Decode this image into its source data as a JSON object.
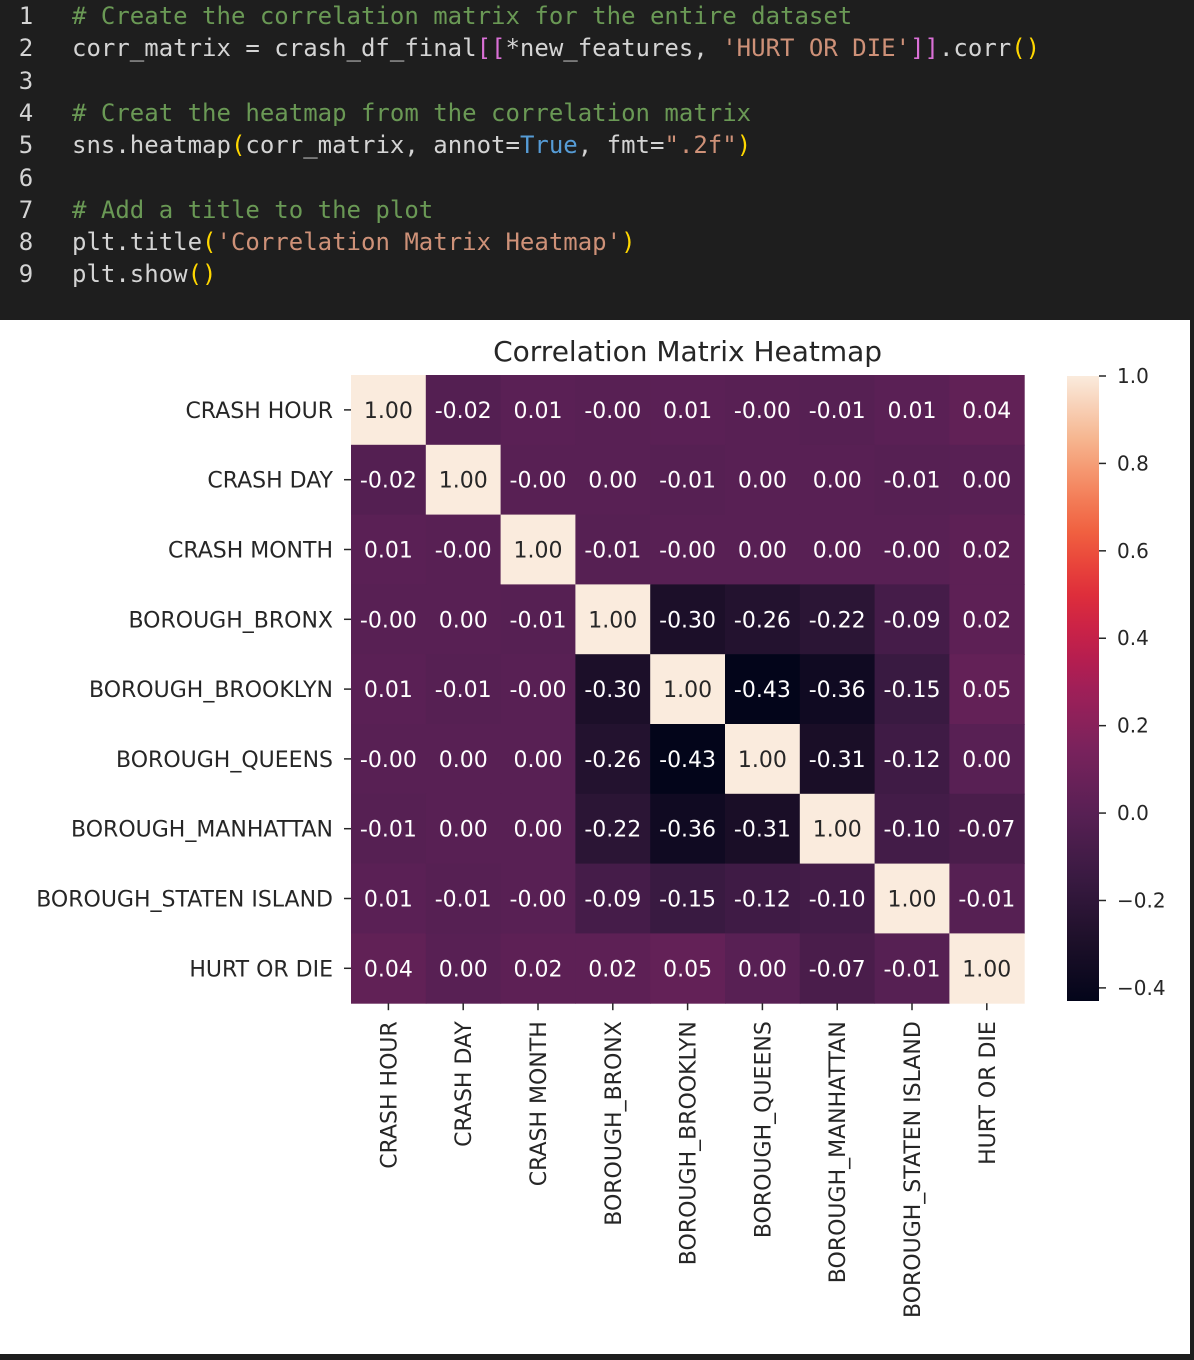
{
  "code_cell": {
    "lines": [
      {
        "num": "1",
        "tokens": [
          {
            "t": "# Create the correlation matrix for the entire dataset",
            "k": "comment"
          }
        ]
      },
      {
        "num": "2",
        "tokens": [
          {
            "t": "corr_matrix = crash_df_final",
            "k": "plain"
          },
          {
            "t": "[[",
            "k": "bracket"
          },
          {
            "t": "*new_features, ",
            "k": "plain"
          },
          {
            "t": "'HURT OR DIE'",
            "k": "string"
          },
          {
            "t": "]]",
            "k": "bracket"
          },
          {
            "t": ".corr",
            "k": "plain"
          },
          {
            "t": "()",
            "k": "paren"
          }
        ]
      },
      {
        "num": "3",
        "tokens": []
      },
      {
        "num": "4",
        "tokens": [
          {
            "t": "# Creat the heatmap from the correlation matrix",
            "k": "comment"
          }
        ]
      },
      {
        "num": "5",
        "tokens": [
          {
            "t": "sns.heatmap",
            "k": "plain"
          },
          {
            "t": "(",
            "k": "paren"
          },
          {
            "t": "corr_matrix, annot=",
            "k": "plain"
          },
          {
            "t": "True",
            "k": "kw"
          },
          {
            "t": ", fmt=",
            "k": "plain"
          },
          {
            "t": "\".2f\"",
            "k": "string"
          },
          {
            "t": ")",
            "k": "paren"
          }
        ]
      },
      {
        "num": "6",
        "tokens": []
      },
      {
        "num": "7",
        "tokens": [
          {
            "t": "# Add a title to the plot",
            "k": "comment"
          }
        ]
      },
      {
        "num": "8",
        "tokens": [
          {
            "t": "plt.title",
            "k": "plain"
          },
          {
            "t": "(",
            "k": "paren"
          },
          {
            "t": "'Correlation Matrix Heatmap'",
            "k": "string"
          },
          {
            "t": ")",
            "k": "paren"
          }
        ]
      },
      {
        "num": "9",
        "tokens": [
          {
            "t": "plt.show",
            "k": "plain"
          },
          {
            "t": "()",
            "k": "paren"
          }
        ]
      }
    ]
  },
  "chart_data": {
    "type": "heatmap",
    "title": "Correlation Matrix Heatmap",
    "labels": [
      "CRASH HOUR",
      "CRASH DAY",
      "CRASH MONTH",
      "BOROUGH_BRONX",
      "BOROUGH_BROOKLYN",
      "BOROUGH_QUEENS",
      "BOROUGH_MANHATTAN",
      "BOROUGH_STATEN ISLAND",
      "HURT OR DIE"
    ],
    "values": [
      [
        1.0,
        -0.02,
        0.01,
        -0.0,
        0.01,
        -0.0,
        -0.01,
        0.01,
        0.04
      ],
      [
        -0.02,
        1.0,
        -0.0,
        0.0,
        -0.01,
        0.0,
        0.0,
        -0.01,
        0.0
      ],
      [
        0.01,
        -0.0,
        1.0,
        -0.01,
        -0.0,
        0.0,
        0.0,
        -0.0,
        0.02
      ],
      [
        -0.0,
        0.0,
        -0.01,
        1.0,
        -0.3,
        -0.26,
        -0.22,
        -0.09,
        0.02
      ],
      [
        0.01,
        -0.01,
        -0.0,
        -0.3,
        1.0,
        -0.43,
        -0.36,
        -0.15,
        0.05
      ],
      [
        -0.0,
        0.0,
        0.0,
        -0.26,
        -0.43,
        1.0,
        -0.31,
        -0.12,
        0.0
      ],
      [
        -0.01,
        0.0,
        0.0,
        -0.22,
        -0.36,
        -0.31,
        1.0,
        -0.1,
        -0.07
      ],
      [
        0.01,
        -0.01,
        -0.0,
        -0.09,
        -0.15,
        -0.12,
        -0.1,
        1.0,
        -0.01
      ],
      [
        0.04,
        0.0,
        0.02,
        0.02,
        0.05,
        0.0,
        -0.07,
        -0.01,
        1.0
      ]
    ],
    "annotations": [
      [
        "1.00",
        "-0.02",
        "0.01",
        "-0.00",
        "0.01",
        "-0.00",
        "-0.01",
        "0.01",
        "0.04"
      ],
      [
        "-0.02",
        "1.00",
        "-0.00",
        "0.00",
        "-0.01",
        "0.00",
        "0.00",
        "-0.01",
        "0.00"
      ],
      [
        "0.01",
        "-0.00",
        "1.00",
        "-0.01",
        "-0.00",
        "0.00",
        "0.00",
        "-0.00",
        "0.02"
      ],
      [
        "-0.00",
        "0.00",
        "-0.01",
        "1.00",
        "-0.30",
        "-0.26",
        "-0.22",
        "-0.09",
        "0.02"
      ],
      [
        "0.01",
        "-0.01",
        "-0.00",
        "-0.30",
        "1.00",
        "-0.43",
        "-0.36",
        "-0.15",
        "0.05"
      ],
      [
        "-0.00",
        "0.00",
        "0.00",
        "-0.26",
        "-0.43",
        "1.00",
        "-0.31",
        "-0.12",
        "0.00"
      ],
      [
        "-0.01",
        "0.00",
        "0.00",
        "-0.22",
        "-0.36",
        "-0.31",
        "1.00",
        "-0.10",
        "-0.07"
      ],
      [
        "0.01",
        "-0.01",
        "-0.00",
        "-0.09",
        "-0.15",
        "-0.12",
        "-0.10",
        "1.00",
        "-0.01"
      ],
      [
        "0.04",
        "0.00",
        "0.02",
        "0.02",
        "0.05",
        "0.00",
        "-0.07",
        "-0.01",
        "1.00"
      ]
    ],
    "colormap": "rocket",
    "colorbar": {
      "vmin": -0.43,
      "vmax": 1.0,
      "ticks": [
        1.0,
        0.8,
        0.6,
        0.4,
        0.2,
        0.0,
        -0.2,
        -0.4
      ],
      "tick_labels": [
        "1.0",
        "0.8",
        "0.6",
        "0.4",
        "0.2",
        "0.0",
        "−0.2",
        "−0.4"
      ]
    }
  },
  "colors": {
    "editor_bg": "#1e1e1e",
    "comment": "#6a9955",
    "string": "#ce9178",
    "keyword": "#569cd6",
    "paren": "#ffd700",
    "bracket": "#da70d6",
    "output_bg": "#ffffff"
  }
}
